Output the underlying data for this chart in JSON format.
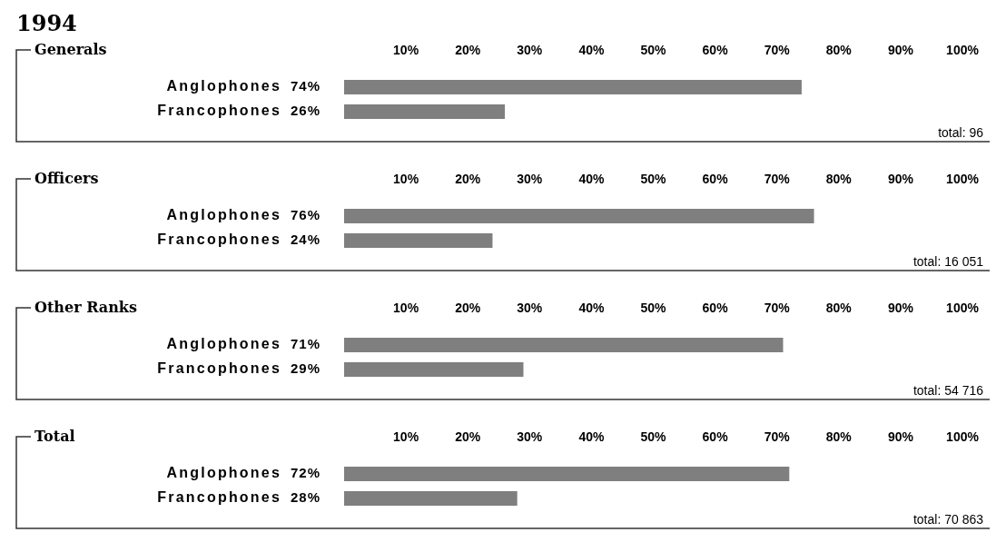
{
  "chart_data": [
    {
      "type": "bar",
      "orientation": "horizontal",
      "title": "1994",
      "subtitle": "Generals",
      "categories": [
        "Anglophones",
        "Francophones"
      ],
      "values": [
        74,
        26
      ],
      "value_labels": [
        "74%",
        "26%"
      ],
      "color": "#7f7f7f",
      "xlim": [
        0,
        100
      ],
      "xticks": [
        {
          "value": 10,
          "label": "10%"
        },
        {
          "value": 20,
          "label": "20%"
        },
        {
          "value": 30,
          "label": "30%"
        },
        {
          "value": 40,
          "label": "40%"
        },
        {
          "value": 50,
          "label": "50%"
        },
        {
          "value": 60,
          "label": "60%"
        },
        {
          "value": 70,
          "label": "70%"
        },
        {
          "value": 80,
          "label": "80%"
        },
        {
          "value": 90,
          "label": "90%"
        },
        {
          "value": 100,
          "label": "100%"
        }
      ],
      "annotations": [
        "total: 96"
      ]
    },
    {
      "type": "bar",
      "orientation": "horizontal",
      "title": "Officers",
      "categories": [
        "Anglophones",
        "Francophones"
      ],
      "values": [
        76,
        24
      ],
      "value_labels": [
        "76%",
        "24%"
      ],
      "color": "#7f7f7f",
      "xlim": [
        0,
        100
      ],
      "xticks": [
        {
          "value": 10,
          "label": "10%"
        },
        {
          "value": 20,
          "label": "20%"
        },
        {
          "value": 30,
          "label": "30%"
        },
        {
          "value": 40,
          "label": "40%"
        },
        {
          "value": 50,
          "label": "50%"
        },
        {
          "value": 60,
          "label": "60%"
        },
        {
          "value": 70,
          "label": "70%"
        },
        {
          "value": 80,
          "label": "80%"
        },
        {
          "value": 90,
          "label": "90%"
        },
        {
          "value": 100,
          "label": "100%"
        }
      ],
      "annotations": [
        "total: 16 051"
      ]
    },
    {
      "type": "bar",
      "orientation": "horizontal",
      "title": "Other Ranks",
      "categories": [
        "Anglophones",
        "Francophones"
      ],
      "values": [
        71,
        29
      ],
      "value_labels": [
        "71%",
        "29%"
      ],
      "color": "#7f7f7f",
      "xlim": [
        0,
        100
      ],
      "xticks": [
        {
          "value": 10,
          "label": "10%"
        },
        {
          "value": 20,
          "label": "20%"
        },
        {
          "value": 30,
          "label": "30%"
        },
        {
          "value": 40,
          "label": "40%"
        },
        {
          "value": 50,
          "label": "50%"
        },
        {
          "value": 60,
          "label": "60%"
        },
        {
          "value": 70,
          "label": "70%"
        },
        {
          "value": 80,
          "label": "80%"
        },
        {
          "value": 90,
          "label": "90%"
        },
        {
          "value": 100,
          "label": "100%"
        }
      ],
      "annotations": [
        "total: 54 716"
      ]
    },
    {
      "type": "bar",
      "orientation": "horizontal",
      "title": "Total",
      "categories": [
        "Anglophones",
        "Francophones"
      ],
      "values": [
        72,
        28
      ],
      "value_labels": [
        "72%",
        "28%"
      ],
      "color": "#7f7f7f",
      "xlim": [
        0,
        100
      ],
      "xticks": [
        {
          "value": 10,
          "label": "10%"
        },
        {
          "value": 20,
          "label": "20%"
        },
        {
          "value": 30,
          "label": "30%"
        },
        {
          "value": 40,
          "label": "40%"
        },
        {
          "value": 50,
          "label": "50%"
        },
        {
          "value": 60,
          "label": "60%"
        },
        {
          "value": 70,
          "label": "70%"
        },
        {
          "value": 80,
          "label": "80%"
        },
        {
          "value": 90,
          "label": "90%"
        },
        {
          "value": 100,
          "label": "100%"
        }
      ],
      "annotations": [
        "total: 70 863"
      ]
    }
  ]
}
